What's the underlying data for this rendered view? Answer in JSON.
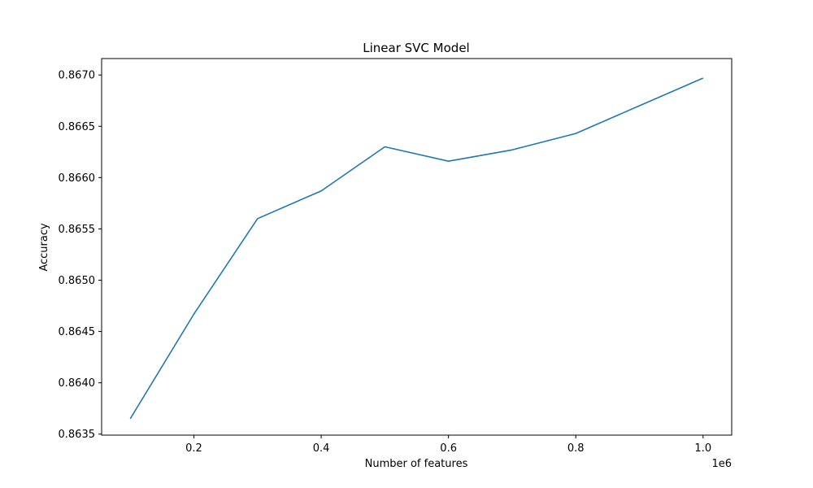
{
  "chart_data": {
    "type": "line",
    "title": "Linear SVC Model",
    "xlabel": "Number of features",
    "ylabel": "Accuracy",
    "x_offset_label": "1e6",
    "x_scale_factor": 1000000,
    "xlim": [
      55000,
      1045000
    ],
    "ylim": [
      0.86349,
      0.86716
    ],
    "grid": false,
    "x_ticks": [
      200000,
      400000,
      600000,
      800000,
      1000000
    ],
    "x_tick_labels": [
      "0.2",
      "0.4",
      "0.6",
      "0.8",
      "1.0"
    ],
    "y_ticks": [
      0.8635,
      0.864,
      0.8645,
      0.865,
      0.8655,
      0.866,
      0.8665,
      0.867
    ],
    "y_tick_labels": [
      "0.8635",
      "0.8640",
      "0.8645",
      "0.8650",
      "0.8655",
      "0.8660",
      "0.8665",
      "0.8670"
    ],
    "series": [
      {
        "color": "#1f77b4",
        "x": [
          100000,
          200000,
          300000,
          400000,
          500000,
          600000,
          700000,
          800000,
          900000,
          1000000
        ],
        "y": [
          0.86365,
          0.86467,
          0.8656,
          0.86587,
          0.8663,
          0.86616,
          0.86627,
          0.86643,
          0.8667,
          0.86697
        ]
      }
    ]
  }
}
